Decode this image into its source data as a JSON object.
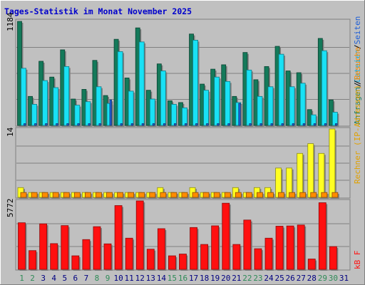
{
  "chart_data": {
    "type": "bar",
    "title": "Tages-Statistik im Monat November 2025",
    "days": [
      "1",
      "2",
      "3",
      "4",
      "5",
      "6",
      "7",
      "8",
      "9",
      "10",
      "11",
      "12",
      "13",
      "14",
      "15",
      "16",
      "17",
      "18",
      "19",
      "20",
      "21",
      "22",
      "23",
      "24",
      "25",
      "26",
      "27",
      "28",
      "29",
      "30",
      "31"
    ],
    "weekend_days": [
      "1",
      "2",
      "8",
      "9",
      "15",
      "16",
      "22",
      "23",
      "29",
      "30"
    ],
    "colors": {
      "frame_bg": "#c0c0c0",
      "plot_bg": "#c0c0c0",
      "title": "#0000cc",
      "anfragen": "#147a5a",
      "dateien": "#19e1f5",
      "seiten": "#1f5fd6",
      "rechner": "#ffff22",
      "besuche": "#ff8c00",
      "kb": "#ff1010",
      "weekday_label": "#000080",
      "weekend_label": "#2e8b57"
    },
    "panels": [
      {
        "id": "hits",
        "max_label": "1184",
        "max": 1184,
        "series": [
          {
            "name": "Anfragen",
            "values": [
              1184,
              330,
              730,
              550,
              860,
              300,
              410,
              740,
              340,
              980,
              540,
              1110,
              400,
              700,
              280,
              260,
              1040,
              470,
              640,
              690,
              330,
              830,
              520,
              670,
              900,
              620,
              600,
              180,
              990,
              290,
              0
            ]
          },
          {
            "name": "Dateien",
            "values": [
              650,
              240,
              510,
              430,
              670,
              230,
              270,
              440,
              250,
              840,
              390,
              950,
              300,
              620,
              240,
              200,
              970,
              400,
              550,
              500,
              260,
              630,
              330,
              440,
              810,
              440,
              480,
              120,
              850,
              150,
              0
            ]
          },
          {
            "name": "Seiten",
            "values": [
              20,
              20,
              20,
              20,
              20,
              20,
              20,
              20,
              290,
              20,
              20,
              20,
              20,
              20,
              20,
              20,
              20,
              20,
              20,
              20,
              250,
              20,
              20,
              20,
              20,
              20,
              20,
              20,
              20,
              20,
              0
            ]
          }
        ],
        "label": "Anfragen",
        "label2": "Dateien",
        "label3": "Seiten",
        "sep": "/"
      },
      {
        "id": "visits",
        "max_label": "14",
        "max": 14,
        "series": [
          {
            "name": "Rechner (IP-Adressen)",
            "values": [
              2,
              1,
              1,
              1,
              1,
              1,
              1,
              1,
              1,
              1,
              1,
              1,
              1,
              2,
              1,
              1,
              2,
              1,
              1,
              1,
              2,
              1,
              2,
              2,
              6,
              6,
              9,
              11,
              9,
              14,
              0
            ]
          },
          {
            "name": "Besuche",
            "values": [
              1,
              1,
              1,
              1,
              1,
              1,
              1,
              1,
              1,
              1,
              1,
              1,
              1,
              1,
              1,
              1,
              1,
              1,
              1,
              1,
              1,
              1,
              1,
              1,
              1,
              1,
              1,
              1,
              1,
              1,
              0
            ]
          }
        ],
        "label": "Rechner (IP-Adressen)",
        "label2": "Besuche",
        "sep": "/"
      },
      {
        "id": "kb",
        "max_label": "5772",
        "max": 5772,
        "series": [
          {
            "name": "kB F",
            "values": [
              3930,
              1580,
              3840,
              2170,
              3690,
              1140,
              2510,
              3600,
              2150,
              5380,
              2630,
              5772,
              1700,
              3430,
              1140,
              1290,
              3530,
              2100,
              3670,
              5580,
              2100,
              4160,
              1740,
              2630,
              3640,
              3660,
              3740,
              870,
              5620,
              1920,
              0
            ]
          }
        ],
        "label": "kB F"
      }
    ]
  }
}
